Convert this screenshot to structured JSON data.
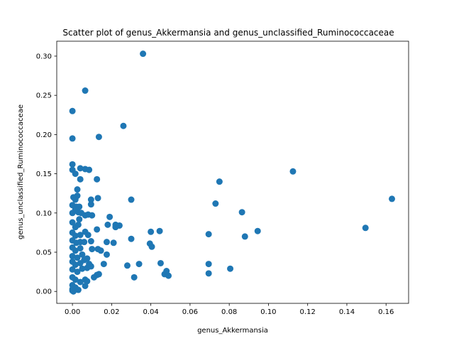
{
  "chart_data": {
    "type": "scatter",
    "title": "Scatter plot of genus_Akkermansia and genus_unclassified_Ruminococcaceae",
    "xlabel": "genus_Akkermansia",
    "ylabel": "genus_unclassified_Ruminococcaceae",
    "xlim": [
      -0.008,
      0.1715
    ],
    "ylim": [
      -0.0152,
      0.319
    ],
    "xticks": [
      "0.00",
      "0.02",
      "0.04",
      "0.06",
      "0.08",
      "0.10",
      "0.12",
      "0.14",
      "0.16"
    ],
    "yticks": [
      "0.00",
      "0.05",
      "0.10",
      "0.15",
      "0.20",
      "0.25",
      "0.30"
    ],
    "grid": false,
    "color": "#1f77b4",
    "points": [
      [
        0.036,
        0.303
      ],
      [
        0.0065,
        0.256
      ],
      [
        0.0,
        0.23
      ],
      [
        0.026,
        0.211
      ],
      [
        0.0,
        0.195
      ],
      [
        0.0135,
        0.197
      ],
      [
        0.0,
        0.162
      ],
      [
        0.0,
        0.155
      ],
      [
        0.0015,
        0.15
      ],
      [
        0.004,
        0.157
      ],
      [
        0.0065,
        0.156
      ],
      [
        0.0085,
        0.155
      ],
      [
        0.004,
        0.143
      ],
      [
        0.0125,
        0.143
      ],
      [
        0.0025,
        0.13
      ],
      [
        0.0005,
        0.12
      ],
      [
        0.0025,
        0.122
      ],
      [
        0.0015,
        0.117
      ],
      [
        0.0,
        0.11
      ],
      [
        0.002,
        0.108
      ],
      [
        0.0035,
        0.108
      ],
      [
        0.0095,
        0.117
      ],
      [
        0.0095,
        0.111
      ],
      [
        0.013,
        0.119
      ],
      [
        0.0,
        0.1
      ],
      [
        0.0015,
        0.105
      ],
      [
        0.003,
        0.101
      ],
      [
        0.0045,
        0.1
      ],
      [
        0.0065,
        0.097
      ],
      [
        0.008,
        0.098
      ],
      [
        0.01,
        0.097
      ],
      [
        0.0035,
        0.092
      ],
      [
        0.0,
        0.088
      ],
      [
        0.0015,
        0.082
      ],
      [
        0.003,
        0.085
      ],
      [
        0.018,
        0.085
      ],
      [
        0.019,
        0.095
      ],
      [
        0.022,
        0.085
      ],
      [
        0.024,
        0.084
      ],
      [
        0.022,
        0.082
      ],
      [
        0.0125,
        0.079
      ],
      [
        0.0,
        0.075
      ],
      [
        0.0015,
        0.071
      ],
      [
        0.004,
        0.072
      ],
      [
        0.0065,
        0.076
      ],
      [
        0.008,
        0.072
      ],
      [
        0.0,
        0.065
      ],
      [
        0.002,
        0.062
      ],
      [
        0.004,
        0.063
      ],
      [
        0.006,
        0.063
      ],
      [
        0.0095,
        0.064
      ],
      [
        0.0175,
        0.063
      ],
      [
        0.021,
        0.062
      ],
      [
        0.03,
        0.117
      ],
      [
        0.03,
        0.067
      ],
      [
        0.0,
        0.056
      ],
      [
        0.0015,
        0.052
      ],
      [
        0.004,
        0.055
      ],
      [
        0.01,
        0.054
      ],
      [
        0.013,
        0.054
      ],
      [
        0.0145,
        0.052
      ],
      [
        0.0175,
        0.047
      ],
      [
        0.0,
        0.045
      ],
      [
        0.0025,
        0.043
      ],
      [
        0.005,
        0.047
      ],
      [
        0.0075,
        0.042
      ],
      [
        0.0,
        0.038
      ],
      [
        0.0015,
        0.034
      ],
      [
        0.004,
        0.036
      ],
      [
        0.006,
        0.04
      ],
      [
        0.0085,
        0.035
      ],
      [
        0.0095,
        0.032
      ],
      [
        0.016,
        0.035
      ],
      [
        0.028,
        0.033
      ],
      [
        0.034,
        0.035
      ],
      [
        0.0,
        0.028
      ],
      [
        0.0025,
        0.025
      ],
      [
        0.005,
        0.029
      ],
      [
        0.0075,
        0.03
      ],
      [
        0.0125,
        0.021
      ],
      [
        0.0135,
        0.022
      ],
      [
        0.011,
        0.018
      ],
      [
        0.0,
        0.018
      ],
      [
        0.0015,
        0.015
      ],
      [
        0.004,
        0.012
      ],
      [
        0.0065,
        0.015
      ],
      [
        0.0075,
        0.013
      ],
      [
        0.0065,
        0.007
      ],
      [
        0.0,
        0.008
      ],
      [
        0.0015,
        0.005
      ],
      [
        0.003,
        0.002
      ],
      [
        0.0,
        0.001
      ],
      [
        0.0005,
        0.0
      ],
      [
        0.0,
        0.003
      ],
      [
        0.0315,
        0.018
      ],
      [
        0.04,
        0.076
      ],
      [
        0.0445,
        0.077
      ],
      [
        0.0395,
        0.061
      ],
      [
        0.0405,
        0.057
      ],
      [
        0.045,
        0.036
      ],
      [
        0.047,
        0.022
      ],
      [
        0.048,
        0.026
      ],
      [
        0.049,
        0.02
      ],
      [
        0.0695,
        0.073
      ],
      [
        0.0695,
        0.035
      ],
      [
        0.0695,
        0.023
      ],
      [
        0.073,
        0.112
      ],
      [
        0.075,
        0.14
      ],
      [
        0.0805,
        0.029
      ],
      [
        0.0865,
        0.101
      ],
      [
        0.088,
        0.07
      ],
      [
        0.0945,
        0.077
      ],
      [
        0.1125,
        0.153
      ],
      [
        0.1495,
        0.081
      ],
      [
        0.163,
        0.118
      ]
    ]
  }
}
